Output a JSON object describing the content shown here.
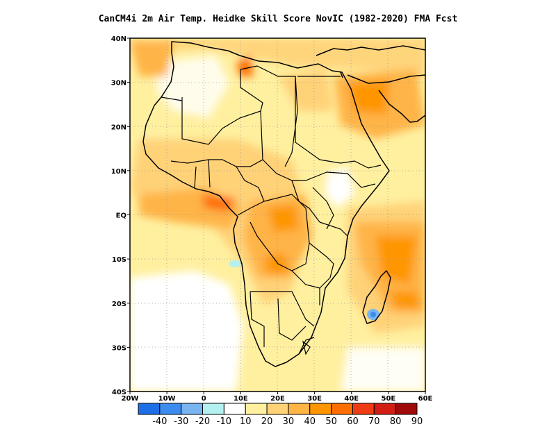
{
  "title": "CanCM4i  2m Air Temp. Heidke Skill Score NovIC (1982-2020) FMA Fcst",
  "map": {
    "region": "Africa",
    "lon_range": [
      -20,
      60
    ],
    "lat_range": [
      -40,
      40
    ],
    "lat_ticks": [
      {
        "value": 40,
        "label": "40N"
      },
      {
        "value": 30,
        "label": "30N"
      },
      {
        "value": 20,
        "label": "20N"
      },
      {
        "value": 10,
        "label": "10N"
      },
      {
        "value": 0,
        "label": "EQ"
      },
      {
        "value": -10,
        "label": "10S"
      },
      {
        "value": -20,
        "label": "20S"
      },
      {
        "value": -30,
        "label": "30S"
      },
      {
        "value": -40,
        "label": "40S"
      }
    ],
    "lon_ticks": [
      {
        "value": -20,
        "label": "20W"
      },
      {
        "value": -10,
        "label": "10W"
      },
      {
        "value": 0,
        "label": "0"
      },
      {
        "value": 10,
        "label": "10E"
      },
      {
        "value": 20,
        "label": "20E"
      },
      {
        "value": 30,
        "label": "30E"
      },
      {
        "value": 40,
        "label": "40E"
      },
      {
        "value": 50,
        "label": "50E"
      },
      {
        "value": 60,
        "label": "60E"
      }
    ],
    "grid": "dotted"
  },
  "colorbar": {
    "levels": [
      "-40",
      "-30",
      "-20",
      "-10",
      "10",
      "20",
      "30",
      "40",
      "50",
      "60",
      "70",
      "80",
      "90"
    ],
    "colors": [
      "#1e6fe6",
      "#3c8cf0",
      "#78b4f0",
      "#b4f0f0",
      "#ffffff",
      "#fff0a0",
      "#ffd278",
      "#ffb446",
      "#ff9600",
      "#ff6e00",
      "#f03c14",
      "#d21e14",
      "#a00a0a"
    ]
  }
}
